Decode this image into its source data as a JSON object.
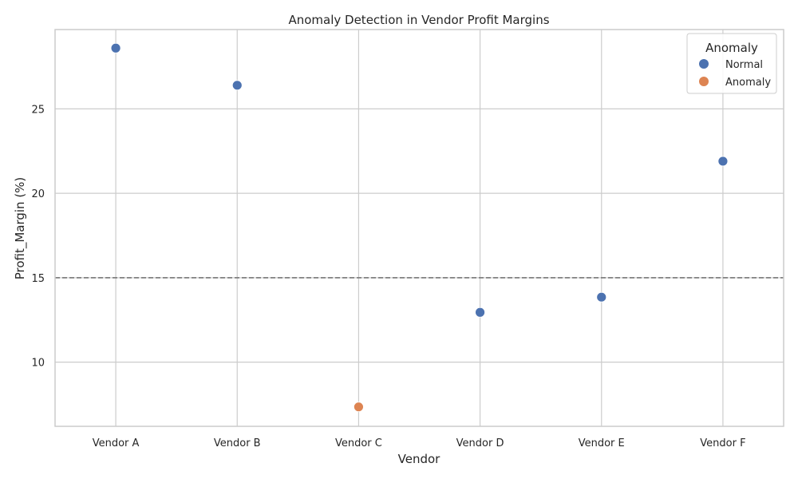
{
  "chart_data": {
    "type": "scatter",
    "title": "Anomaly Detection in Vendor Profit Margins",
    "xlabel": "Vendor",
    "ylabel": "Profit_Margin (%)",
    "categories": [
      "Vendor A",
      "Vendor B",
      "Vendor C",
      "Vendor D",
      "Vendor E",
      "Vendor F"
    ],
    "values": [
      28.6,
      26.4,
      7.35,
      12.95,
      13.85,
      21.9
    ],
    "groups": [
      "Normal",
      "Normal",
      "Anomaly",
      "Normal",
      "Normal",
      "Normal"
    ],
    "yticks": [
      10,
      15,
      20,
      25
    ],
    "ylim": [
      6.2,
      29.7
    ],
    "threshold": 15,
    "grid": true,
    "legend": {
      "title": "Anomaly",
      "placement": "top-right",
      "entries": [
        {
          "label": "Normal",
          "color": "#4c72b0"
        },
        {
          "label": "Anomaly",
          "color": "#dd8452"
        }
      ]
    }
  }
}
